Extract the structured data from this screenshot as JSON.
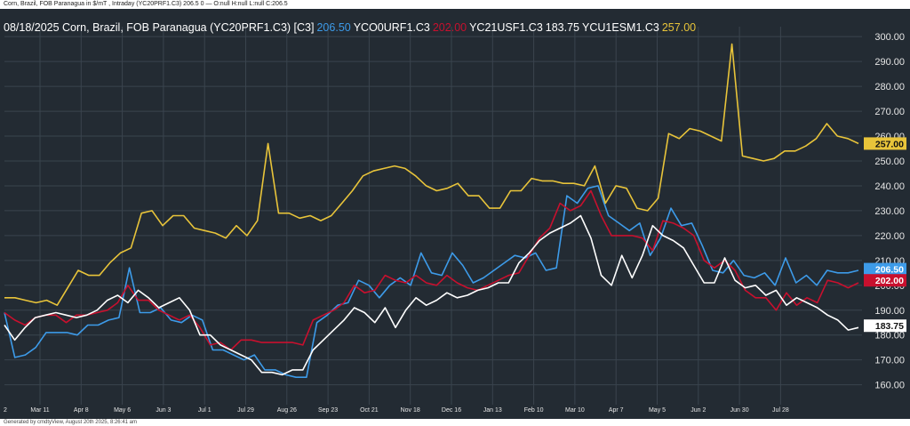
{
  "header": {
    "subtitle": "Corn, Brazil, FOB Paranagua in $/mT , Intraday (YC20PRF1.C3) 206.5 0 — O:null H:null L:null C:206.5"
  },
  "legend": {
    "prefix": "08/18/2025 Corn, Brazil, FOB Paranagua (YC20PRF1.C3) [C3]",
    "s1_value": "206.50",
    "s2_name": "YCO0URF1.C3",
    "s2_value": "202.00",
    "s3_name": "YC21USF1.C3",
    "s3_value": "183.75",
    "s4_name": "YCU1ESM1.C3",
    "s4_value": "257.00"
  },
  "footer": {
    "text": "Generated by cmdtyView, August 20th 2025, 8:26:41 am"
  },
  "colors": {
    "blue": "#3d9be9",
    "red": "#c8102e",
    "white": "#ffffff",
    "yellow": "#e8c43a",
    "grid": "#3a444e"
  },
  "chart_data": {
    "type": "line",
    "x_labels": [
      "Mar 11",
      "Apr 8",
      "May 6",
      "Jun 3",
      "Jul 1",
      "Jul 29",
      "Aug 26",
      "Sep 23",
      "Oct 21",
      "Nov 18",
      "Dec 16",
      "Jan 13",
      "Feb 10",
      "Mar 10",
      "Apr 7",
      "May 5",
      "Jun 2",
      "Jun 30",
      "Jul 28"
    ],
    "x_label_left": "2",
    "y_ticks": [
      "300.00",
      "290.00",
      "280.00",
      "270.00",
      "260.00",
      "250.00",
      "240.00",
      "230.00",
      "220.00",
      "210.00",
      "200.00",
      "190.00",
      "180.00",
      "170.00",
      "160.00"
    ],
    "ylim": [
      152,
      304
    ],
    "grid": true,
    "series": [
      {
        "name": "YC20PRF1.C3",
        "color": "blue",
        "last": "206.50",
        "values": [
          189,
          171,
          172,
          175,
          181,
          181,
          181,
          180,
          184,
          184,
          186,
          187,
          207,
          189,
          189,
          191,
          186,
          185,
          188,
          186,
          174,
          174,
          172,
          170,
          172,
          166,
          166,
          164,
          163,
          163,
          185,
          188,
          192,
          193,
          202,
          200,
          195,
          200,
          203,
          200,
          213,
          205,
          204,
          213,
          208,
          201,
          203,
          206,
          209,
          212,
          211,
          213,
          206,
          207,
          236,
          233,
          239,
          240,
          228,
          225,
          222,
          225,
          212,
          219,
          231,
          224,
          225,
          216,
          206,
          205,
          210,
          204,
          203,
          205,
          200,
          211,
          201,
          204,
          200,
          206,
          205,
          205,
          206
        ]
      },
      {
        "name": "YCO0URF1.C3",
        "color": "red",
        "last": "202.00",
        "values": [
          189,
          186,
          184,
          187,
          188,
          188,
          185,
          188,
          188,
          189,
          190,
          193,
          200,
          194,
          194,
          190,
          188,
          186,
          188,
          183,
          176,
          177,
          174,
          178,
          178,
          177,
          177,
          177,
          177,
          176,
          186,
          188,
          190,
          193,
          200,
          197,
          198,
          204,
          202,
          201,
          204,
          201,
          200,
          204,
          201,
          199,
          198,
          200,
          202,
          204,
          205,
          212,
          219,
          223,
          233,
          230,
          232,
          238,
          228,
          220,
          220,
          220,
          219,
          214,
          226,
          225,
          223,
          220,
          210,
          207,
          210,
          206,
          198,
          195,
          195,
          190,
          197,
          192,
          195,
          193,
          202,
          201,
          199,
          201
        ]
      },
      {
        "name": "YC21USF1.C3",
        "color": "white",
        "last": "183.75",
        "values": [
          184,
          178,
          183,
          187,
          188,
          189,
          188,
          187,
          188,
          190,
          194,
          196,
          193,
          198,
          195,
          191,
          193,
          195,
          190,
          180,
          180,
          176,
          174,
          172,
          170,
          165,
          165,
          164,
          166,
          166,
          174,
          178,
          182,
          186,
          191,
          189,
          185,
          191,
          183,
          190,
          195,
          192,
          194,
          197,
          195,
          196,
          198,
          199,
          201,
          201,
          209,
          213,
          218,
          221,
          223,
          225,
          228,
          219,
          204,
          200,
          212,
          203,
          212,
          224,
          220,
          218,
          215,
          208,
          201,
          201,
          211,
          202,
          199,
          200,
          196,
          198,
          192,
          195,
          193,
          191,
          188,
          186,
          182,
          183
        ]
      },
      {
        "name": "YCU1ESM1.C3",
        "color": "yellow",
        "last": "257.00",
        "values": [
          195,
          195,
          194,
          193,
          194,
          192,
          199,
          206,
          204,
          204,
          209,
          213,
          215,
          229,
          230,
          224,
          228,
          228,
          223,
          222,
          221,
          219,
          224,
          220,
          226,
          257,
          229,
          229,
          227,
          228,
          226,
          228,
          233,
          238,
          244,
          246,
          247,
          248,
          247,
          244,
          240,
          238,
          239,
          241,
          236,
          236,
          231,
          231,
          238,
          238,
          243,
          242,
          242,
          241,
          241,
          240,
          248,
          233,
          240,
          239,
          231,
          230,
          235,
          261,
          259,
          263,
          262,
          260,
          258,
          297,
          252,
          251,
          250,
          251,
          254,
          254,
          256,
          259,
          265,
          260,
          259,
          257
        ]
      }
    ]
  }
}
